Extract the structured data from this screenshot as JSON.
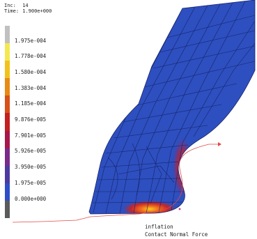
{
  "header": {
    "inc_label": "Inc:",
    "inc_value": "14",
    "time_label": "Time:",
    "time_value": "1.900e+000"
  },
  "legend": {
    "colors": [
      "#c0c0c0",
      "#f4e850",
      "#f2c21c",
      "#e98a14",
      "#d8501a",
      "#c51f1f",
      "#a8174a",
      "#7a2a8a",
      "#4d3aa0",
      "#2d4ec8",
      "#5a5a5a"
    ],
    "ticks": [
      "1.975e-004",
      "1.778e-004",
      "1.580e-004",
      "1.383e-004",
      "1.185e-004",
      "9.876e-005",
      "7.901e-005",
      "5.926e-005",
      "3.950e-005",
      "1.975e-005",
      "0.000e+000"
    ]
  },
  "caption": {
    "line1": "inflation",
    "line2": "Contact Normal Force"
  },
  "colors": {
    "mesh_fill": "#2e4fbf",
    "mesh_line": "#16246a",
    "contact_line": "#e24a4a",
    "hot": "#e8352a",
    "warm": "#f3a41c"
  }
}
